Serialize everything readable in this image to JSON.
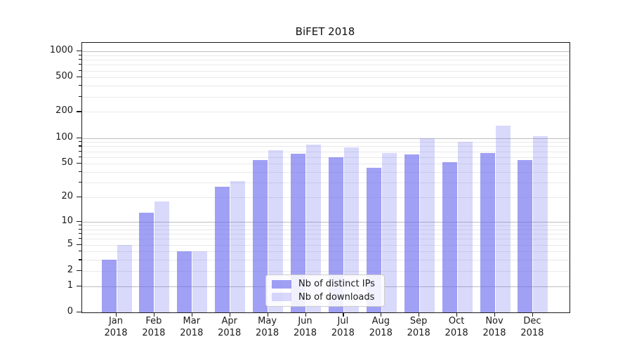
{
  "chart_data": {
    "type": "bar",
    "title": "BiFET 2018",
    "categories": [
      "Jan",
      "Feb",
      "Mar",
      "Apr",
      "May",
      "Jun",
      "Jul",
      "Aug",
      "Sep",
      "Oct",
      "Nov",
      "Dec"
    ],
    "year": "2018",
    "series": [
      {
        "name": "Nb of distinct IPs",
        "color": "rgba(102,102,238,0.62)",
        "values": [
          3,
          13,
          4,
          27,
          55,
          65,
          60,
          45,
          64,
          52,
          67,
          55
        ]
      },
      {
        "name": "Nb of downloads",
        "color": "rgba(102,102,238,0.25)",
        "values": [
          5,
          18,
          4,
          31,
          72,
          83,
          78,
          67,
          100,
          90,
          140,
          105
        ]
      }
    ],
    "xlabel": "",
    "ylabel": "",
    "yscale": "log1p",
    "ylim": [
      0,
      1250
    ],
    "yticks": [
      0,
      1,
      2,
      5,
      10,
      20,
      50,
      100,
      200,
      500,
      1000
    ],
    "grid": true,
    "grid_major_color": "#bdbdbd",
    "grid_minor_color": "#e9e9e9",
    "legend_position": "lower center"
  }
}
